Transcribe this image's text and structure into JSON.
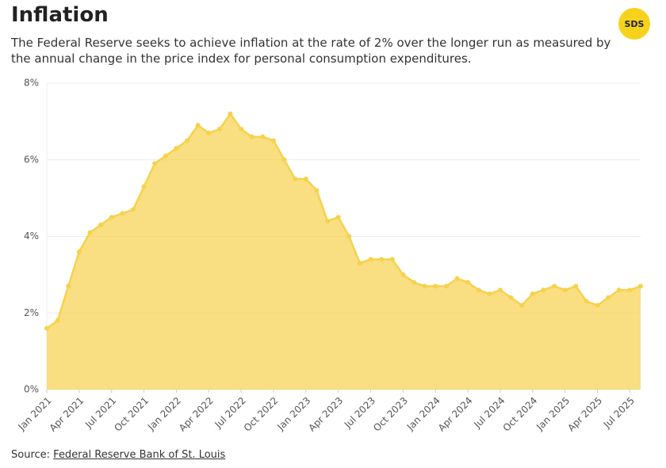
{
  "chart_data": {
    "type": "area",
    "title": "Inflation",
    "subtitle": "The Federal Reserve seeks to achieve inflation at the rate of 2% over the longer run as measured by the annual change in the price index for personal consumption expenditures.",
    "logo": "SDS",
    "source_prefix": "Source:",
    "source": "Federal Reserve Bank of St. Louis",
    "categories": [
      "Jan 2021",
      null,
      null,
      "Apr 2021",
      null,
      null,
      "Jul 2021",
      null,
      null,
      "Oct 2021",
      null,
      null,
      "Jan 2022",
      null,
      null,
      "Apr 2022",
      null,
      null,
      "Jul 2022",
      null,
      null,
      "Oct 2022",
      null,
      null,
      "Jan 2023",
      null,
      null,
      "Apr 2023",
      null,
      null,
      "Jul 2023",
      null,
      null,
      "Oct 2023",
      null,
      null,
      "Jan 2024",
      null,
      null,
      "Apr 2024",
      null,
      null,
      "Jul 2024",
      null,
      null,
      "Oct 2024",
      null,
      null,
      "Jan 2025",
      null,
      null,
      "Apr 2025",
      null,
      null,
      "Jul 2025",
      null
    ],
    "values": [
      1.6,
      1.8,
      2.7,
      3.6,
      4.1,
      4.3,
      4.5,
      4.6,
      4.7,
      5.3,
      5.9,
      6.1,
      6.3,
      6.5,
      6.9,
      6.7,
      6.8,
      7.2,
      6.8,
      6.6,
      6.6,
      6.5,
      6.0,
      5.5,
      5.5,
      5.2,
      4.4,
      4.5,
      4.0,
      3.3,
      3.4,
      3.4,
      3.4,
      3.0,
      2.8,
      2.7,
      2.7,
      2.7,
      2.9,
      2.8,
      2.6,
      2.5,
      2.6,
      2.4,
      2.2,
      2.5,
      2.6,
      2.7,
      2.6,
      2.7,
      2.3,
      2.2,
      2.4,
      2.6,
      2.6,
      2.7
    ],
    "color": "#f6d24c",
    "ylim": [
      0,
      8
    ],
    "yticks": [
      {
        "value": 0,
        "label": "0%"
      },
      {
        "value": 2,
        "label": "2%"
      },
      {
        "value": 4,
        "label": "4%"
      },
      {
        "value": 6,
        "label": "6%"
      },
      {
        "value": 8,
        "label": "8%"
      }
    ],
    "grid": true
  }
}
